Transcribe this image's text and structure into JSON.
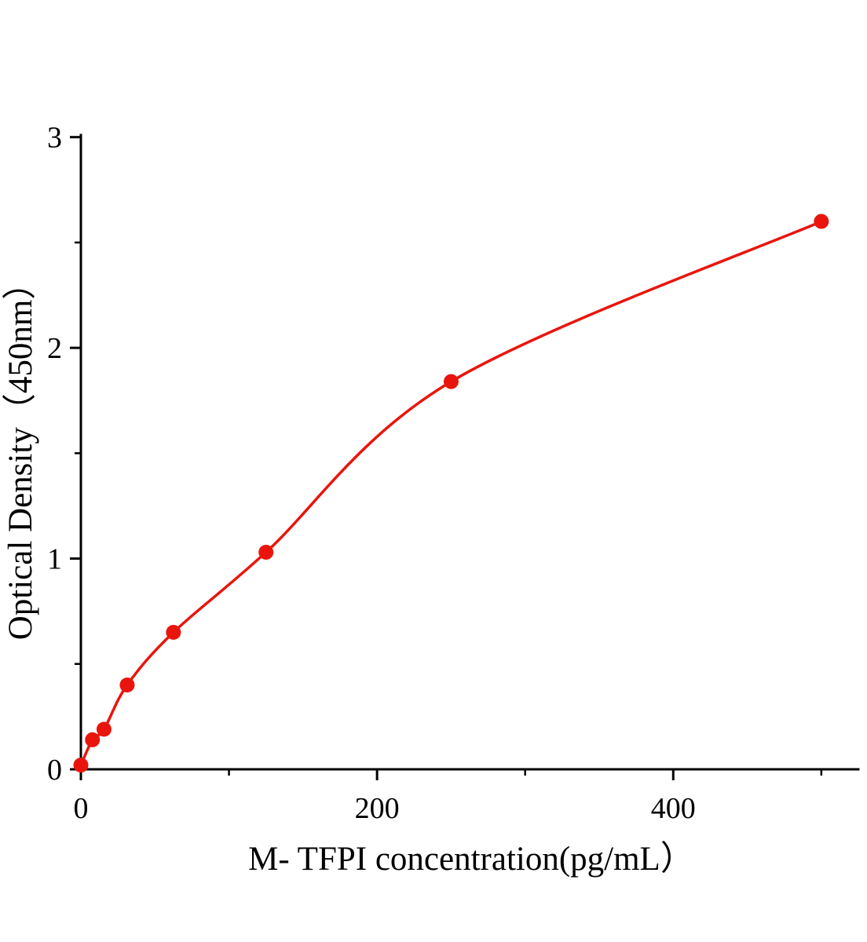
{
  "chart_data": {
    "type": "scatter",
    "title": "",
    "xlabel": "M- TFPI concentration(pg/mL）",
    "ylabel": "Optical Density（450nm）",
    "points": [
      {
        "x": 0,
        "y": 0.02
      },
      {
        "x": 7.8,
        "y": 0.14
      },
      {
        "x": 15.6,
        "y": 0.19
      },
      {
        "x": 31.25,
        "y": 0.4
      },
      {
        "x": 62.5,
        "y": 0.65
      },
      {
        "x": 125,
        "y": 1.03
      },
      {
        "x": 250,
        "y": 1.84
      },
      {
        "x": 500,
        "y": 2.6
      }
    ],
    "curve_type": "smooth fit through standards",
    "xlim": [
      0,
      525
    ],
    "ylim": [
      0,
      3.01
    ],
    "x_major_ticks": [
      0,
      200,
      400
    ],
    "x_minor_ticks": [
      100,
      300,
      500
    ],
    "y_major_ticks": [
      0,
      1,
      2,
      3
    ],
    "y_minor_ticks": [
      0.5,
      1.5,
      2.5
    ],
    "legend": null,
    "grid": false,
    "colors": {
      "curve": "#e9150d",
      "marker": "#e9150d",
      "axis": "#000000"
    },
    "marker_radius": 9.5
  }
}
